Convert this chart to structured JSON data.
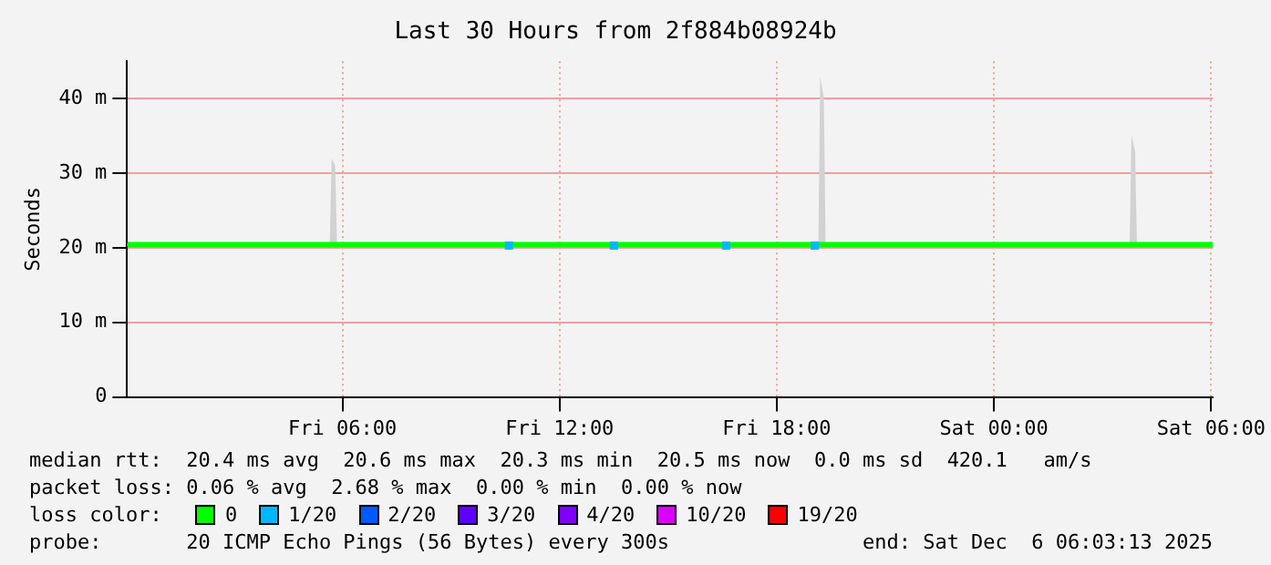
{
  "chart_data": {
    "type": "line",
    "title": "Last 30 Hours from 2f884b08924b",
    "ylabel": "Seconds",
    "xlim": [
      "2025-12-05T00:03",
      "2025-12-06T06:03"
    ],
    "xticks": [
      {
        "value": "2025-12-05T06:00",
        "label": "Fri 06:00"
      },
      {
        "value": "2025-12-05T12:00",
        "label": "Fri 12:00"
      },
      {
        "value": "2025-12-05T18:00",
        "label": "Fri 18:00"
      },
      {
        "value": "2025-12-06T00:00",
        "label": "Sat 00:00"
      },
      {
        "value": "2025-12-06T06:00",
        "label": "Sat 06:00"
      }
    ],
    "ylim": [
      0,
      45
    ],
    "yticks": [
      {
        "value": 0,
        "label": "0"
      },
      {
        "value": 10,
        "label": "10 m"
      },
      {
        "value": 20,
        "label": "20 m"
      },
      {
        "value": 30,
        "label": "30 m"
      },
      {
        "value": 40,
        "label": "40 m"
      }
    ],
    "grid": true,
    "legend": "bottom",
    "legend_title": "loss color:",
    "series": [
      {
        "name": "0",
        "color": "#00ff00",
        "marker": "none",
        "x": [
          "2025-12-05T00:03",
          "2025-12-05T01:00",
          "2025-12-05T02:00",
          "2025-12-05T03:00",
          "2025-12-05T04:00",
          "2025-12-05T05:00",
          "2025-12-05T05:39",
          "2025-12-05T05:42",
          "2025-12-05T05:48",
          "2025-12-05T05:51",
          "2025-12-05T06:00",
          "2025-12-05T07:00",
          "2025-12-05T08:00",
          "2025-12-05T09:00",
          "2025-12-05T10:00",
          "2025-12-05T10:36",
          "2025-12-05T11:00",
          "2025-12-05T12:00",
          "2025-12-05T13:00",
          "2025-12-05T13:30",
          "2025-12-05T14:00",
          "2025-12-05T15:00",
          "2025-12-05T16:00",
          "2025-12-05T16:36",
          "2025-12-05T17:00",
          "2025-12-05T18:00",
          "2025-12-05T19:00",
          "2025-12-05T19:03",
          "2025-12-05T19:09",
          "2025-12-05T19:12",
          "2025-12-05T19:18",
          "2025-12-05T19:21",
          "2025-12-05T20:00",
          "2025-12-05T21:00",
          "2025-12-05T22:00",
          "2025-12-05T23:00",
          "2025-12-06T00:00",
          "2025-12-06T01:00",
          "2025-12-06T02:00",
          "2025-12-06T03:00",
          "2025-12-06T03:45",
          "2025-12-06T03:48",
          "2025-12-06T03:54",
          "2025-12-06T03:57",
          "2025-12-06T05:00",
          "2025-12-06T06:03"
        ],
        "values": [
          20.4,
          20.4,
          20.4,
          20.4,
          20.4,
          20.4,
          20.4,
          20.4,
          20.4,
          20.4,
          20.4,
          20.4,
          20.4,
          20.4,
          20.4,
          20.4,
          20.4,
          20.4,
          20.4,
          20.4,
          20.4,
          20.4,
          20.4,
          20.4,
          20.4,
          20.4,
          20.4,
          20.4,
          20.4,
          20.4,
          20.4,
          20.4,
          20.4,
          20.4,
          20.4,
          20.4,
          20.4,
          20.4,
          20.4,
          20.4,
          20.4,
          20.4,
          20.4,
          20.4,
          20.4,
          20.4
        ],
        "lower": [
          20.2,
          20.2,
          20.2,
          20.2,
          20.2,
          20.2,
          20.2,
          20.2,
          20.2,
          20.2,
          20.2,
          20.2,
          20.2,
          20.2,
          20.2,
          20.2,
          20.2,
          20.2,
          20.2,
          20.2,
          20.2,
          20.2,
          20.2,
          20.2,
          20.2,
          20.2,
          20.2,
          20.2,
          20.2,
          20.2,
          20.2,
          20.2,
          20.2,
          20.2,
          20.2,
          20.2,
          20.2,
          20.2,
          20.2,
          20.2,
          20.2,
          20.2,
          20.2,
          20.2,
          20.2,
          20.2
        ],
        "upper": [
          20.6,
          20.6,
          20.6,
          20.6,
          20.6,
          20.6,
          20.6,
          32,
          31,
          20.6,
          20.6,
          20.6,
          20.6,
          20.6,
          20.6,
          20.6,
          20.6,
          20.6,
          20.6,
          20.6,
          20.6,
          20.6,
          20.6,
          20.6,
          20.6,
          20.6,
          20.6,
          20.6,
          20.6,
          43,
          40,
          20.6,
          20.6,
          20.6,
          20.6,
          20.6,
          20.6,
          20.6,
          20.6,
          20.6,
          20.6,
          35,
          33,
          20.6,
          20.6,
          20.6
        ]
      },
      {
        "name": "1/20",
        "color": "#00b8ff",
        "type": "scatter",
        "marker": "square",
        "x": [
          "2025-12-05T10:36",
          "2025-12-05T13:30",
          "2025-12-05T16:36",
          "2025-12-05T19:03"
        ],
        "values": [
          20.3,
          20.3,
          20.3,
          20.3
        ]
      },
      {
        "name": "2/20",
        "color": "#0059ff",
        "type": "scatter",
        "marker": "square"
      },
      {
        "name": "3/20",
        "color": "#5e00ff",
        "type": "scatter",
        "marker": "square"
      },
      {
        "name": "4/20",
        "color": "#7e00ff",
        "type": "scatter",
        "marker": "square"
      },
      {
        "name": "10/20",
        "color": "#dd00ff",
        "type": "scatter",
        "marker": "square"
      },
      {
        "name": "19/20",
        "color": "#ff0000",
        "type": "scatter",
        "marker": "square"
      }
    ],
    "annotations": [
      "median rtt:  20.4 ms avg  20.6 ms max  20.3 ms min  20.5 ms now  0.0 ms sd  420.1   am/s",
      "packet loss: 0.06 % avg  2.68 % max  0.00 % min  0.00 % now",
      "probe:       20 ICMP Echo Pings (56 Bytes) every 300s                end: Sat Dec  6 06:03:13 2025"
    ]
  }
}
